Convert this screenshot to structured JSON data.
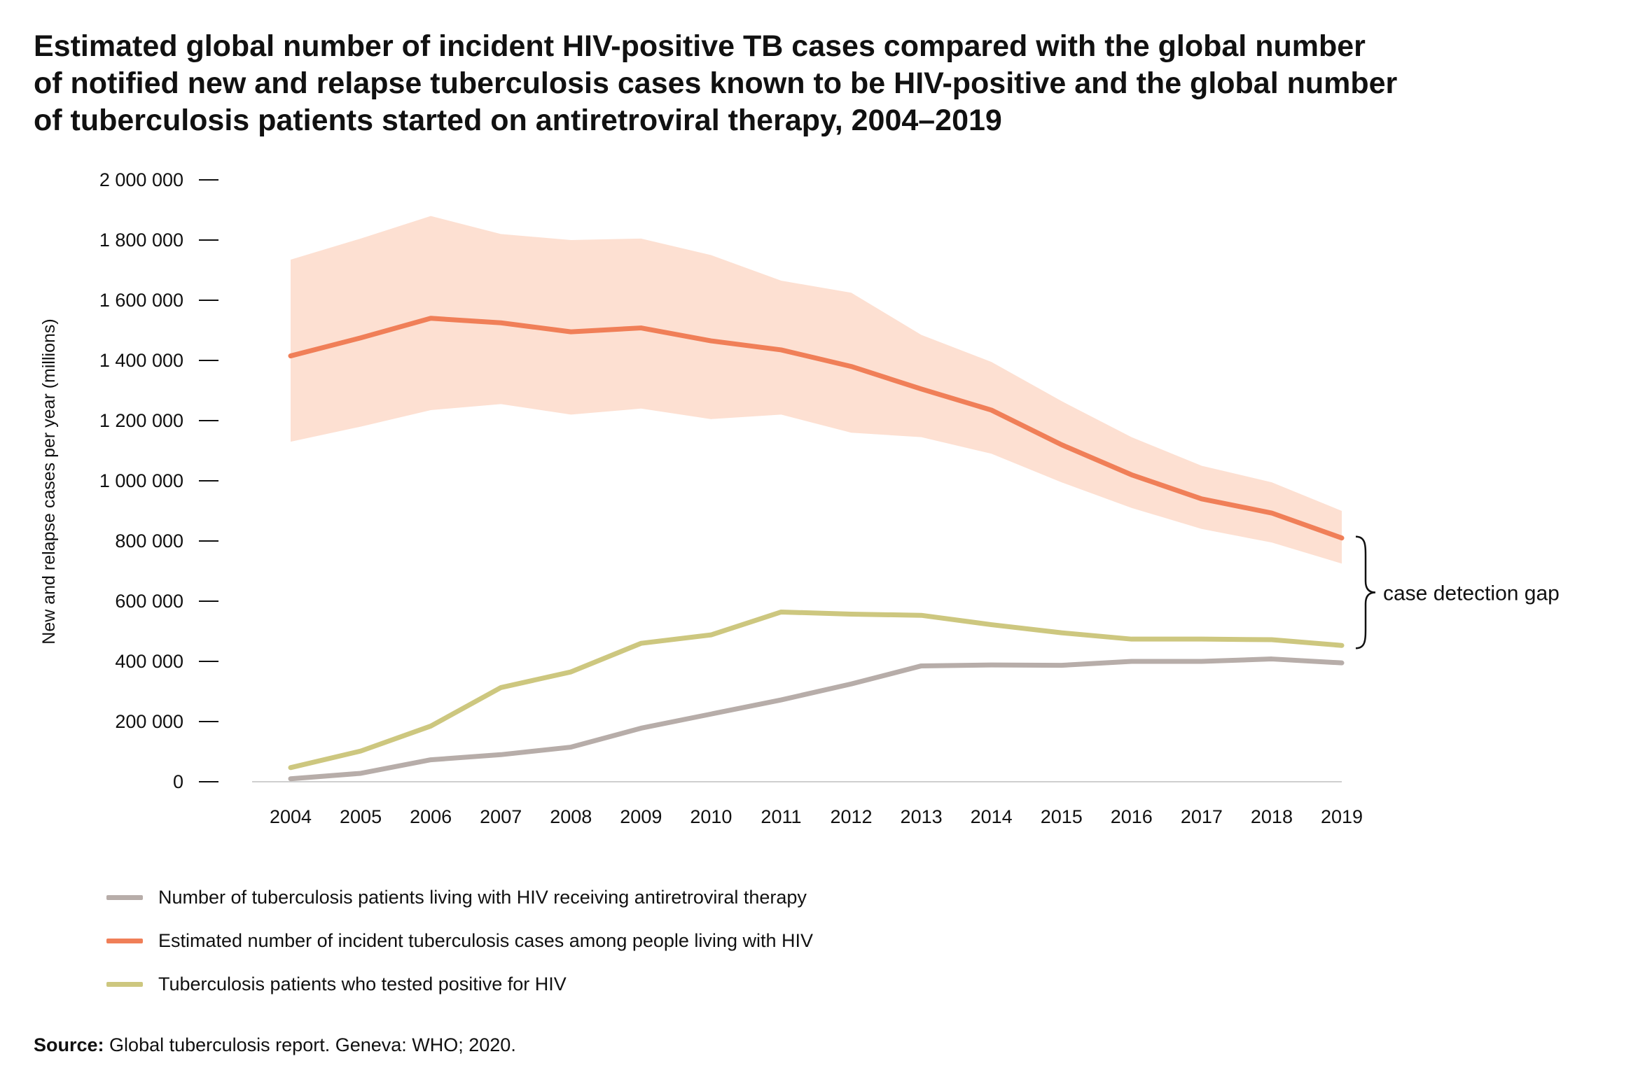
{
  "title_lines": [
    "Estimated global number of incident HIV-positive TB cases compared with the global number",
    "of notified new and relapse tuberculosis cases known to be HIV-positive and the global number",
    "of tuberculosis patients started on antiretroviral therapy, 2004–2019"
  ],
  "source": {
    "label": "Source:",
    "text": "Global tuberculosis report. Geneva: WHO; 2020."
  },
  "annotation": "case detection gap",
  "colors": {
    "estimated": "#f07f58",
    "band": "#fde0d2",
    "tested": "#cdc77f",
    "art": "#b7ada9"
  },
  "chart_data": {
    "type": "line",
    "ylabel": "New and relapse cases per year (millions)",
    "ylim": [
      0,
      2000000
    ],
    "yticks": [
      0,
      200000,
      400000,
      600000,
      800000,
      1000000,
      1200000,
      1400000,
      1600000,
      1800000,
      2000000
    ],
    "ytick_labels": [
      "0",
      "200 000",
      "400 000",
      "600 000",
      "800 000",
      "1 000 000",
      "1 200 000",
      "1 400 000",
      "1 600 000",
      "1 800 000",
      "2 000 000"
    ],
    "x": [
      "2004",
      "2005",
      "2006",
      "2007",
      "2008",
      "2009",
      "2010",
      "2011",
      "2012",
      "2013",
      "2014",
      "2015",
      "2016",
      "2017",
      "2018",
      "2019"
    ],
    "uncertainty_band": {
      "series": "Estimated number of incident tuberculosis cases among people living with HIV",
      "lower": [
        1130000,
        1180000,
        1235000,
        1255000,
        1220000,
        1240000,
        1205000,
        1220000,
        1160000,
        1145000,
        1090000,
        995000,
        910000,
        840000,
        795000,
        725000
      ],
      "upper": [
        1735000,
        1805000,
        1880000,
        1820000,
        1800000,
        1805000,
        1750000,
        1665000,
        1625000,
        1485000,
        1395000,
        1265000,
        1145000,
        1050000,
        995000,
        900000
      ]
    },
    "series": [
      {
        "name": "Number of tuberculosis patients living with HIV receiving antiretroviral therapy",
        "color": "#b7ada9",
        "values": [
          10000,
          28000,
          73000,
          90000,
          115000,
          178000,
          225000,
          272000,
          325000,
          385000,
          388000,
          387000,
          400000,
          400000,
          408000,
          395000
        ]
      },
      {
        "name": "Estimated number of incident tuberculosis cases among people living with HIV",
        "color": "#f07f58",
        "values": [
          1415000,
          1475000,
          1540000,
          1525000,
          1495000,
          1508000,
          1465000,
          1435000,
          1380000,
          1305000,
          1235000,
          1120000,
          1020000,
          940000,
          893000,
          810000
        ]
      },
      {
        "name": "Tuberculosis patients who tested positive for HIV",
        "color": "#cdc77f",
        "values": [
          47000,
          102000,
          185000,
          313000,
          365000,
          460000,
          488000,
          564000,
          557000,
          553000,
          522000,
          495000,
          474000,
          474000,
          472000,
          453000
        ]
      }
    ],
    "legend": "bottom-left"
  }
}
